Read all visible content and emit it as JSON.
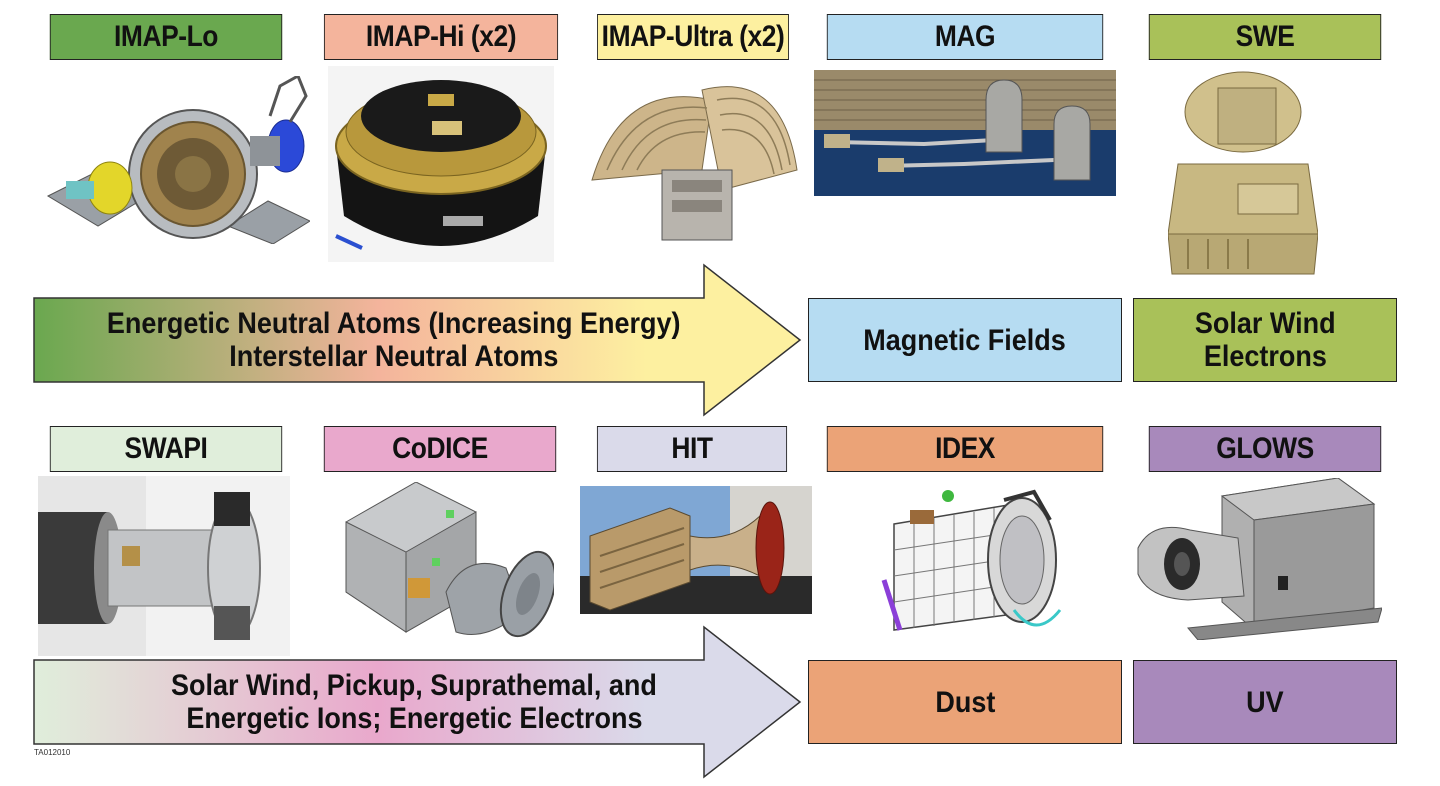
{
  "instruments_row1": [
    {
      "label": "IMAP-Lo",
      "color": "#6aa84f"
    },
    {
      "label": "IMAP-Hi (x2)",
      "color": "#f4b49c"
    },
    {
      "label": "IMAP-Ultra (x2)",
      "color": "#fdf0a0"
    },
    {
      "label": "MAG",
      "color": "#b6dcf2"
    },
    {
      "label": "SWE",
      "color": "#a9c159"
    }
  ],
  "instruments_row2": [
    {
      "label": "SWAPI",
      "color": "#e0eedb"
    },
    {
      "label": "CoDICE",
      "color": "#e9a8cc"
    },
    {
      "label": "HIT",
      "color": "#dadaea"
    },
    {
      "label": "IDEX",
      "color": "#eba377"
    },
    {
      "label": "GLOWS",
      "color": "#a889bb"
    }
  ],
  "arrow1": {
    "line1": "Energetic Neutral Atoms (Increasing Energy)",
    "line2": "Interstellar Neutral Atoms"
  },
  "arrow2": {
    "line1": "Solar Wind, Pickup, Suprathemal, and",
    "line2": "Energetic Ions; Energetic Electrons"
  },
  "measurements_row1": [
    {
      "lines": [
        "Magnetic Fields"
      ],
      "color": "#b6dcf2"
    },
    {
      "lines": [
        "Solar Wind",
        "Electrons"
      ],
      "color": "#a9c159"
    }
  ],
  "measurements_row2": [
    {
      "lines": [
        "Dust"
      ],
      "color": "#eba377"
    },
    {
      "lines": [
        "UV"
      ],
      "color": "#a889bb"
    }
  ],
  "figure_tag": "TA012010"
}
